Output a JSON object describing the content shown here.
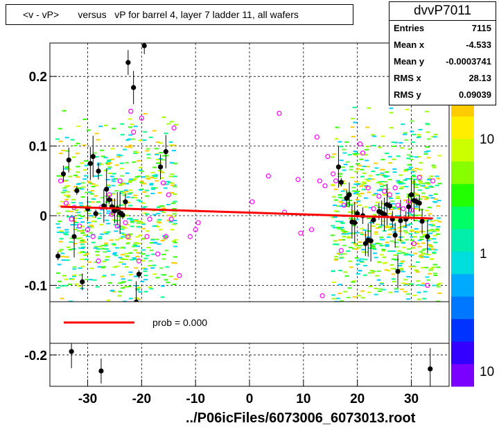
{
  "header": {
    "title": "<v - vP>       versus   vP for barrel 4, layer 7 ladder 11, all wafers"
  },
  "stats": {
    "name": "dvvP7011",
    "rows": [
      {
        "label": "Entries",
        "value": "7115"
      },
      {
        "label": "Mean x",
        "value": "-4.533"
      },
      {
        "label": "Mean y",
        "value": "-0.0003741"
      },
      {
        "label": "RMS x",
        "value": "28.13"
      },
      {
        "label": "RMS y",
        "value": "0.09039"
      }
    ]
  },
  "legend": {
    "fit_label": "prob = 0.000",
    "fit_color": "#ff0000"
  },
  "footer": {
    "filename": "../P06icFiles/6073006_6073013.root"
  },
  "chart_data": {
    "type": "scatter",
    "xlim": [
      -37,
      37
    ],
    "ylim": [
      -0.245,
      0.248
    ],
    "x_ticks": [
      -30,
      -20,
      -10,
      0,
      10,
      20,
      30
    ],
    "x_tick_labels": [
      "-30",
      "-20",
      "-10",
      "0",
      "10",
      "20",
      "30"
    ],
    "y_ticks": [
      -0.2,
      -0.1,
      0,
      0.1,
      0.2
    ],
    "y_tick_labels": [
      "-0.2",
      "-0.1",
      "0",
      "0.1",
      "0.2"
    ],
    "grid": true,
    "z_axis_labels": [
      "10",
      "1",
      "10"
    ],
    "fit_line": {
      "x": [
        -35,
        34
      ],
      "y": [
        0.013,
        -0.004
      ],
      "color": "#ff0000"
    },
    "profile_points": [
      {
        "x": -35.5,
        "y": -0.058
      },
      {
        "x": -34.5,
        "y": 0.06
      },
      {
        "x": -33.5,
        "y": 0.08
      },
      {
        "x": -33,
        "y": -0.195
      },
      {
        "x": -32.5,
        "y": -0.03
      },
      {
        "x": -32,
        "y": 0.036
      },
      {
        "x": -31,
        "y": -0.095
      },
      {
        "x": -30,
        "y": 0.01
      },
      {
        "x": -29.5,
        "y": 0.075
      },
      {
        "x": -29,
        "y": 0.085
      },
      {
        "x": -28.5,
        "y": 0.003
      },
      {
        "x": -28,
        "y": 0.064
      },
      {
        "x": -27.5,
        "y": -0.223
      },
      {
        "x": -27,
        "y": 0.014
      },
      {
        "x": -26.5,
        "y": 0.038
      },
      {
        "x": -26,
        "y": 0.023
      },
      {
        "x": -25.5,
        "y": 0.013
      },
      {
        "x": -25,
        "y": 0.007
      },
      {
        "x": -24.5,
        "y": 0.01
      },
      {
        "x": -24,
        "y": 0.004
      },
      {
        "x": -23.5,
        "y": 0.001
      },
      {
        "x": -23,
        "y": 0.02
      },
      {
        "x": -22.5,
        "y": 0.22
      },
      {
        "x": -21.5,
        "y": 0.184
      },
      {
        "x": -21,
        "y": -0.124
      },
      {
        "x": -20.5,
        "y": -0.084
      },
      {
        "x": -19.5,
        "y": 0.244
      },
      {
        "x": -16.5,
        "y": 0.07
      },
      {
        "x": -15.5,
        "y": 0.092
      },
      {
        "x": 16.5,
        "y": 0.07
      },
      {
        "x": 17,
        "y": 0.048
      },
      {
        "x": 18,
        "y": 0.025
      },
      {
        "x": 18.5,
        "y": 0.03
      },
      {
        "x": 19,
        "y": -0.009
      },
      {
        "x": 19.5,
        "y": -0.01
      },
      {
        "x": 20,
        "y": 0.003
      },
      {
        "x": 21,
        "y": 0.0
      },
      {
        "x": 21.5,
        "y": -0.04
      },
      {
        "x": 22,
        "y": -0.035
      },
      {
        "x": 22.5,
        "y": -0.036
      },
      {
        "x": 23,
        "y": -0.006
      },
      {
        "x": 24,
        "y": 0.006
      },
      {
        "x": 24.5,
        "y": 0.004
      },
      {
        "x": 25,
        "y": 0.002
      },
      {
        "x": 25.5,
        "y": 0.016
      },
      {
        "x": 26,
        "y": 0.014
      },
      {
        "x": 26.5,
        "y": -0.005
      },
      {
        "x": 27,
        "y": -0.028
      },
      {
        "x": 27.5,
        "y": -0.08
      },
      {
        "x": 28,
        "y": -0.007
      },
      {
        "x": 28.5,
        "y": 0.195
      },
      {
        "x": 29,
        "y": -0.005
      },
      {
        "x": 29.5,
        "y": 0.013
      },
      {
        "x": 30,
        "y": 0.03
      },
      {
        "x": 30.5,
        "y": 0.022
      },
      {
        "x": 31,
        "y": 0.02
      },
      {
        "x": 31.5,
        "y": 0.018
      },
      {
        "x": 32,
        "y": -0.008
      },
      {
        "x": 33,
        "y": -0.03
      },
      {
        "x": 33.5,
        "y": -0.22
      }
    ],
    "magenta_points": [
      {
        "x": -35,
        "y": 0.05
      },
      {
        "x": -34,
        "y": 0.018
      },
      {
        "x": -33,
        "y": -0.005
      },
      {
        "x": -32.5,
        "y": 0.012
      },
      {
        "x": -31.5,
        "y": -0.015
      },
      {
        "x": -30,
        "y": -0.02
      },
      {
        "x": -29,
        "y": -0.03
      },
      {
        "x": -28,
        "y": -0.065
      },
      {
        "x": -27.5,
        "y": 0.012
      },
      {
        "x": -26,
        "y": 0.03
      },
      {
        "x": -25.5,
        "y": 0.002
      },
      {
        "x": -24.5,
        "y": -0.015
      },
      {
        "x": -24,
        "y": 0.05
      },
      {
        "x": -23,
        "y": -0.01
      },
      {
        "x": -22.5,
        "y": -0.03
      },
      {
        "x": -22,
        "y": 0.15
      },
      {
        "x": -21.5,
        "y": 0.12
      },
      {
        "x": -20.5,
        "y": -0.065
      },
      {
        "x": -20,
        "y": 0.14
      },
      {
        "x": -19,
        "y": -0.03
      },
      {
        "x": -18.5,
        "y": -0.005
      },
      {
        "x": -17,
        "y": -0.055
      },
      {
        "x": -16,
        "y": 0.047
      },
      {
        "x": -15.5,
        "y": -0.03
      },
      {
        "x": -15,
        "y": 0.03
      },
      {
        "x": -14.5,
        "y": -0.005
      },
      {
        "x": -14,
        "y": 0.126
      },
      {
        "x": -13,
        "y": -0.086
      },
      {
        "x": -11,
        "y": -0.03
      },
      {
        "x": -10,
        "y": -0.02
      },
      {
        "x": -9.5,
        "y": -0.01
      },
      {
        "x": 0.5,
        "y": 0.02
      },
      {
        "x": 3.5,
        "y": 0.057
      },
      {
        "x": 5.5,
        "y": 0.147
      },
      {
        "x": 6.5,
        "y": 0.005
      },
      {
        "x": 9,
        "y": 0.052
      },
      {
        "x": 9.5,
        "y": -0.025
      },
      {
        "x": 11.5,
        "y": -0.02
      },
      {
        "x": 12.5,
        "y": 0.113
      },
      {
        "x": 13,
        "y": 0.05
      },
      {
        "x": 13.5,
        "y": -0.115
      },
      {
        "x": 14,
        "y": 0.043
      },
      {
        "x": 14.5,
        "y": 0.085
      },
      {
        "x": 15.5,
        "y": 0.06
      },
      {
        "x": 16,
        "y": 0.05
      },
      {
        "x": 17,
        "y": -0.05
      },
      {
        "x": 17.5,
        "y": 0.015
      },
      {
        "x": 20.5,
        "y": 0.103
      },
      {
        "x": 21,
        "y": 0.09
      },
      {
        "x": 22,
        "y": 0.04
      },
      {
        "x": 23,
        "y": 0.01
      },
      {
        "x": 24,
        "y": 0.028
      },
      {
        "x": 25,
        "y": 0.035
      },
      {
        "x": 26,
        "y": 0.03
      },
      {
        "x": 27,
        "y": 0.04
      },
      {
        "x": 27.5,
        "y": 0.015
      },
      {
        "x": 28.5,
        "y": 0.01
      },
      {
        "x": 29.5,
        "y": 0.02
      },
      {
        "x": 30,
        "y": 0.008
      },
      {
        "x": 30.5,
        "y": -0.04
      },
      {
        "x": 31.5,
        "y": 0.055
      },
      {
        "x": 33,
        "y": -0.1
      },
      {
        "x": 34,
        "y": 0.05
      }
    ]
  }
}
